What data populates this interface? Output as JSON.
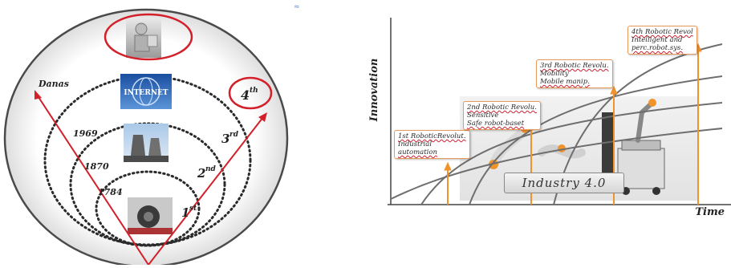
{
  "left": {
    "label_now": "Danas",
    "years": [
      "1969",
      "1870",
      "1784"
    ],
    "revolutions": [
      "1",
      "st",
      "2",
      "nd",
      "3",
      "rd",
      "4",
      "th"
    ],
    "internet_label": "INTERNET"
  },
  "right": {
    "y_label": "Innovation",
    "x_label": "Time",
    "notes": [
      {
        "lines": [
          "1st RoboticRevolut.",
          "Industrial",
          "automation"
        ]
      },
      {
        "lines": [
          "2nd Robotic Revolu.",
          "Sensitive",
          "Safe robot-baset"
        ]
      },
      {
        "lines": [
          "3rd Robotic Revolu.",
          "Mobility",
          "Mobile manip."
        ]
      },
      {
        "lines": [
          "4th Robotic Revol",
          "Intelligent and",
          "perc.robot.sys."
        ]
      }
    ],
    "industry_label": "Industry 4.0"
  },
  "colors": {
    "accent_red": "#d3202a",
    "arrow_orange": "#f0932b",
    "curve_gray": "#6e6e6e"
  }
}
